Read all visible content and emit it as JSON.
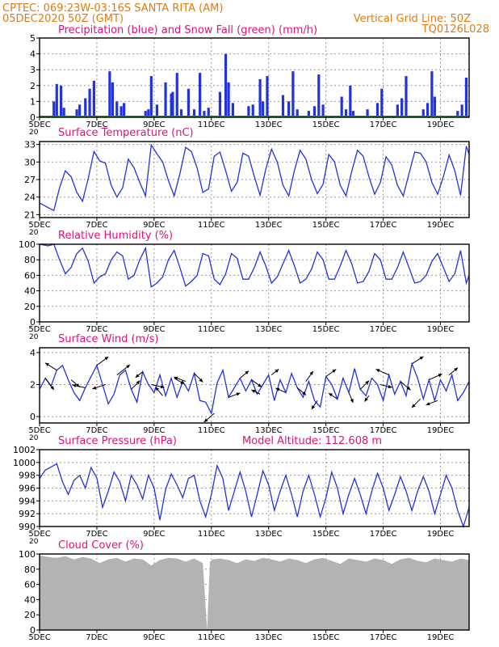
{
  "header": {
    "line1": "CPTEC:   069:23W-03:16S   SANTA RITA (AM)",
    "line2": "05DEC2020 50Z (GMT)",
    "grid_label": "Vertical Grid Line: 50Z",
    "code": "TQ0126L028"
  },
  "colors": {
    "header": "#e07a10",
    "title": "#e0107a",
    "line": "#2233dd",
    "snow": "#10aa10",
    "cloud": "#b3b3b3",
    "grid": "#999999",
    "frame": "#000000"
  },
  "x_axis": {
    "tick_labels": [
      "5DEC",
      "7DEC",
      "9DEC",
      "11DEC",
      "13DEC",
      "15DEC",
      "17DEC",
      "19DEC"
    ],
    "tick_days": [
      5,
      7,
      9,
      11,
      13,
      15,
      17,
      19
    ],
    "day_range": [
      5,
      20
    ],
    "year_fragment": "20"
  },
  "chart_data": [
    {
      "id": "precip",
      "type": "bar",
      "title": "Precipitation (blue) and Snow Fall (green) (mm/h)",
      "ylim": [
        0,
        5
      ],
      "yticks": [
        0,
        1,
        2,
        3,
        4,
        5
      ],
      "grid": true,
      "series": [
        {
          "name": "blue",
          "x": [
            5.5,
            5.6,
            5.75,
            5.85,
            6.3,
            6.4,
            6.6,
            6.75,
            6.9,
            7.45,
            7.55,
            7.7,
            7.85,
            7.95,
            8.7,
            8.8,
            8.9,
            9.1,
            9.4,
            9.6,
            9.65,
            9.8,
            9.95,
            10.2,
            10.4,
            10.6,
            10.75,
            10.9,
            11.3,
            11.5,
            11.6,
            11.75,
            12.3,
            12.45,
            12.7,
            12.8,
            12.95,
            13.5,
            13.7,
            13.85,
            14.0,
            14.4,
            14.6,
            14.75,
            14.9,
            15.55,
            15.7,
            15.85,
            15.95,
            16.45,
            16.8,
            16.95,
            17.5,
            17.65,
            17.8,
            18.4,
            18.55,
            18.7,
            18.8,
            19.6,
            19.75,
            19.9
          ],
          "values": [
            1.0,
            2.1,
            2.0,
            0.6,
            0.5,
            0.8,
            1.2,
            1.8,
            2.3,
            2.9,
            2.2,
            1.0,
            0.7,
            0.9,
            0.4,
            0.5,
            2.6,
            0.8,
            2.2,
            1.5,
            1.6,
            2.8,
            0.5,
            1.8,
            0.5,
            2.8,
            0.4,
            0.6,
            1.6,
            4.0,
            2.2,
            0.9,
            0.7,
            0.8,
            2.4,
            1.0,
            2.6,
            1.4,
            1.0,
            2.9,
            0.5,
            0.4,
            0.7,
            2.7,
            0.8,
            1.3,
            0.5,
            2.0,
            0.4,
            0.5,
            0.9,
            1.8,
            0.8,
            1.2,
            2.6,
            0.5,
            0.9,
            2.9,
            1.3,
            0.4,
            0.8,
            2.5
          ]
        },
        {
          "name": "green",
          "x": [
            5.0,
            20.0
          ],
          "values": [
            0,
            0
          ]
        }
      ]
    },
    {
      "id": "temp",
      "type": "line",
      "title": "Surface Temperature (nC)",
      "ylim": [
        20.5,
        33.5
      ],
      "yticks": [
        21,
        24,
        27,
        30,
        33
      ],
      "grid": true,
      "x": [
        5.0,
        5.3,
        5.5,
        5.7,
        5.9,
        6.1,
        6.3,
        6.5,
        6.7,
        6.9,
        7.1,
        7.3,
        7.5,
        7.7,
        7.9,
        8.1,
        8.3,
        8.5,
        8.7,
        8.9,
        9.1,
        9.3,
        9.5,
        9.7,
        9.9,
        10.1,
        10.3,
        10.5,
        10.7,
        10.9,
        11.1,
        11.3,
        11.5,
        11.7,
        11.9,
        12.1,
        12.3,
        12.5,
        12.7,
        12.9,
        13.1,
        13.3,
        13.5,
        13.7,
        13.9,
        14.1,
        14.3,
        14.5,
        14.7,
        14.9,
        15.1,
        15.3,
        15.5,
        15.7,
        15.9,
        16.1,
        16.3,
        16.5,
        16.7,
        16.9,
        17.1,
        17.3,
        17.5,
        17.7,
        17.9,
        18.1,
        18.3,
        18.5,
        18.7,
        18.9,
        19.1,
        19.3,
        19.5,
        19.7,
        19.9,
        20.0
      ],
      "values": [
        23.0,
        22.2,
        21.7,
        25.6,
        28.5,
        27.5,
        24.8,
        23.3,
        27.2,
        31.8,
        30.2,
        29.8,
        26.0,
        24.0,
        25.6,
        30.5,
        29.0,
        26.5,
        24.2,
        32.9,
        31.4,
        30.0,
        26.8,
        24.2,
        28.0,
        32.5,
        31.8,
        29.0,
        24.8,
        25.4,
        31.0,
        31.7,
        28.5,
        25.0,
        26.5,
        31.5,
        31.0,
        27.5,
        24.3,
        28.8,
        32.2,
        30.0,
        26.0,
        24.2,
        28.6,
        32.0,
        30.5,
        27.0,
        24.6,
        26.2,
        31.3,
        30.0,
        26.0,
        24.2,
        28.4,
        32.0,
        31.0,
        27.5,
        24.5,
        26.5,
        30.9,
        29.5,
        26.0,
        24.2,
        28.0,
        31.7,
        31.5,
        30.0,
        26.5,
        24.5,
        27.5,
        31.2,
        28.5,
        24.3,
        32.7,
        31.3
      ]
    },
    {
      "id": "rh",
      "type": "line",
      "title": "Relative Humidity (%)",
      "ylim": [
        0,
        100
      ],
      "yticks": [
        0,
        20,
        40,
        60,
        80,
        100
      ],
      "grid": true,
      "x": [
        5.0,
        5.3,
        5.5,
        5.7,
        5.9,
        6.1,
        6.3,
        6.5,
        6.7,
        6.9,
        7.1,
        7.3,
        7.5,
        7.7,
        7.9,
        8.1,
        8.3,
        8.5,
        8.7,
        8.9,
        9.1,
        9.3,
        9.5,
        9.7,
        9.9,
        10.1,
        10.3,
        10.5,
        10.7,
        10.9,
        11.1,
        11.3,
        11.5,
        11.7,
        11.9,
        12.1,
        12.3,
        12.5,
        12.7,
        12.9,
        13.1,
        13.3,
        13.5,
        13.7,
        13.9,
        14.1,
        14.3,
        14.5,
        14.7,
        14.9,
        15.1,
        15.3,
        15.5,
        15.7,
        15.9,
        16.1,
        16.3,
        16.5,
        16.7,
        16.9,
        17.1,
        17.3,
        17.5,
        17.7,
        17.9,
        18.1,
        18.3,
        18.5,
        18.7,
        18.9,
        19.1,
        19.3,
        19.5,
        19.7,
        19.9,
        20.0
      ],
      "values": [
        100,
        98,
        100,
        80,
        62,
        70,
        88,
        95,
        78,
        50,
        58,
        62,
        80,
        90,
        85,
        55,
        60,
        80,
        95,
        45,
        50,
        58,
        80,
        92,
        70,
        46,
        52,
        60,
        88,
        85,
        55,
        48,
        62,
        88,
        82,
        55,
        55,
        70,
        90,
        72,
        50,
        58,
        75,
        92,
        72,
        50,
        55,
        68,
        90,
        80,
        55,
        55,
        72,
        92,
        75,
        50,
        52,
        65,
        88,
        80,
        55,
        55,
        70,
        90,
        70,
        50,
        52,
        60,
        78,
        88,
        70,
        52,
        62,
        92,
        50,
        60
      ]
    },
    {
      "id": "wind",
      "type": "line",
      "title": "Surface Wind (m/s)",
      "ylim": [
        -0.4,
        4.3
      ],
      "yticks": [
        0,
        2,
        4
      ],
      "grid": true,
      "x": [
        5.0,
        5.2,
        5.4,
        5.6,
        5.8,
        6.0,
        6.2,
        6.4,
        6.6,
        6.8,
        7.0,
        7.2,
        7.4,
        7.6,
        7.8,
        8.0,
        8.2,
        8.4,
        8.6,
        8.8,
        9.0,
        9.2,
        9.4,
        9.6,
        9.8,
        10.0,
        10.2,
        10.4,
        10.6,
        10.8,
        11.0,
        11.2,
        11.4,
        11.6,
        11.8,
        12.0,
        12.2,
        12.4,
        12.6,
        12.8,
        13.0,
        13.2,
        13.4,
        13.6,
        13.8,
        14.0,
        14.2,
        14.4,
        14.6,
        14.8,
        15.0,
        15.2,
        15.4,
        15.6,
        15.8,
        16.0,
        16.2,
        16.4,
        16.6,
        16.8,
        17.0,
        17.2,
        17.4,
        17.6,
        17.8,
        18.0,
        18.2,
        18.4,
        18.6,
        18.8,
        19.0,
        19.2,
        19.4,
        19.6,
        19.8,
        20.0
      ],
      "values": [
        1.7,
        2.4,
        1.9,
        2.9,
        3.2,
        2.3,
        1.5,
        1.0,
        1.8,
        2.5,
        3.2,
        2.0,
        0.8,
        1.4,
        2.6,
        2.9,
        1.7,
        0.9,
        2.8,
        2.0,
        1.5,
        2.6,
        1.3,
        2.4,
        1.2,
        2.2,
        1.6,
        2.7,
        1.0,
        0.9,
        0.2,
        2.1,
        2.9,
        1.2,
        1.8,
        2.4,
        1.6,
        2.3,
        1.4,
        2.0,
        2.6,
        1.0,
        2.3,
        1.5,
        2.7,
        1.8,
        1.2,
        2.2,
        1.0,
        0.6,
        2.5,
        2.0,
        1.1,
        2.4,
        1.5,
        3.0,
        1.7,
        1.3,
        2.4,
        2.0,
        1.0,
        2.6,
        1.4,
        2.2,
        1.3,
        3.3,
        2.4,
        1.1,
        2.3,
        1.0,
        2.3,
        1.6,
        2.6,
        1.0,
        1.5,
        2.2
      ],
      "arrows": {
        "x": [
          5.2,
          5.6,
          6.1,
          6.6,
          7.0,
          7.3,
          7.7,
          8.2,
          8.6,
          8.9,
          9.3,
          9.7,
          10.1,
          10.4,
          11.1,
          11.6,
          12.0,
          12.4,
          12.7,
          13.1,
          13.6,
          14.0,
          14.3,
          14.7,
          15.0,
          15.4,
          15.8,
          16.2,
          16.5,
          16.9,
          17.2,
          17.6,
          18.0,
          18.3,
          18.6,
          18.9,
          19.3
        ],
        "u": [
          0.6,
          -0.8,
          0.6,
          -0.9,
          0.8,
          -0.9,
          0.9,
          0.6,
          -0.5,
          0.9,
          -0.5,
          0.7,
          -0.8,
          0.6,
          -0.7,
          0.8,
          0.6,
          0.7,
          -0.6,
          0.5,
          -0.7,
          0.6,
          0.5,
          -0.4,
          0.7,
          -0.6,
          0.3,
          0.6,
          -0.3,
          0.8,
          -0.9,
          0.7,
          0.8,
          -0.6,
          0.9,
          -0.8,
          0.6
        ],
        "v": [
          -0.8,
          0.5,
          -0.5,
          0.2,
          0.6,
          -0.3,
          0.7,
          0.6,
          -0.4,
          -0.2,
          0.6,
          -0.4,
          0.3,
          -0.6,
          -0.6,
          0.3,
          0.5,
          -0.5,
          0.3,
          0.4,
          0.3,
          -0.5,
          0.7,
          -0.6,
          0.5,
          0.4,
          -0.7,
          0.6,
          -0.4,
          -0.2,
          0.4,
          -0.6,
          0.5,
          -0.6,
          0.4,
          -0.3,
          0.5
        ]
      }
    },
    {
      "id": "pressure",
      "type": "line",
      "title": "Surface Pressure (hPa)",
      "subtitle": "Model Altitude: 112.608 m",
      "ylim": [
        990,
        1002
      ],
      "yticks": [
        990,
        992,
        994,
        996,
        998,
        1000,
        1002
      ],
      "grid": true,
      "x": [
        5.0,
        5.2,
        5.4,
        5.6,
        5.8,
        6.0,
        6.2,
        6.4,
        6.6,
        6.8,
        7.0,
        7.2,
        7.4,
        7.6,
        7.8,
        8.0,
        8.2,
        8.4,
        8.6,
        8.8,
        9.0,
        9.2,
        9.4,
        9.6,
        9.8,
        10.0,
        10.2,
        10.4,
        10.6,
        10.8,
        11.0,
        11.2,
        11.4,
        11.6,
        11.8,
        12.0,
        12.2,
        12.4,
        12.6,
        12.8,
        13.0,
        13.2,
        13.4,
        13.6,
        13.8,
        14.0,
        14.2,
        14.4,
        14.6,
        14.8,
        15.0,
        15.2,
        15.4,
        15.6,
        15.8,
        16.0,
        16.2,
        16.4,
        16.6,
        16.8,
        17.0,
        17.2,
        17.4,
        17.6,
        17.8,
        18.0,
        18.2,
        18.4,
        18.6,
        18.8,
        19.0,
        19.2,
        19.4,
        19.6,
        19.8,
        20.0
      ],
      "values": [
        997.5,
        998.8,
        999.3,
        999.8,
        997.0,
        995.0,
        997.2,
        998.0,
        996.0,
        999.2,
        997.6,
        993.0,
        995.5,
        998.5,
        997.0,
        994.0,
        998.0,
        996.5,
        994.3,
        998.0,
        996.0,
        991.0,
        995.8,
        998.2,
        996.5,
        994.5,
        997.5,
        998.0,
        994.0,
        991.5,
        995.0,
        999.5,
        997.5,
        992.5,
        995.5,
        998.5,
        995.5,
        991.5,
        995.0,
        998.7,
        996.5,
        992.5,
        995.5,
        998.0,
        995.0,
        991.5,
        995.5,
        998.0,
        995.0,
        991.5,
        994.5,
        998.5,
        996.0,
        992.0,
        995.0,
        997.5,
        995.0,
        992.0,
        995.5,
        998.3,
        996.0,
        992.5,
        995.0,
        997.8,
        995.5,
        992.5,
        995.5,
        997.8,
        995.5,
        992.0,
        995.0,
        998.0,
        996.0,
        992.5,
        990.0,
        993.0
      ]
    },
    {
      "id": "cloud",
      "type": "area",
      "title": "Cloud Cover (%)",
      "ylim": [
        0,
        100
      ],
      "yticks": [
        0,
        20,
        40,
        60,
        80,
        100
      ],
      "grid": true,
      "x": [
        5.0,
        5.3,
        5.6,
        5.9,
        6.2,
        6.5,
        6.8,
        7.1,
        7.4,
        7.7,
        8.0,
        8.3,
        8.6,
        8.9,
        9.2,
        9.5,
        9.8,
        10.1,
        10.4,
        10.7,
        10.85,
        10.95,
        11.05,
        11.3,
        11.6,
        11.9,
        12.2,
        12.5,
        12.8,
        13.1,
        13.4,
        13.7,
        14.0,
        14.3,
        14.6,
        14.9,
        15.2,
        15.5,
        15.8,
        16.1,
        16.4,
        16.7,
        17.0,
        17.3,
        17.6,
        17.9,
        18.2,
        18.5,
        18.8,
        19.1,
        19.4,
        19.7,
        20.0
      ],
      "values": [
        98,
        96,
        95,
        97,
        93,
        96,
        94,
        88,
        93,
        95,
        90,
        94,
        93,
        85,
        92,
        95,
        94,
        90,
        94,
        88,
        0,
        90,
        93,
        94,
        92,
        88,
        93,
        91,
        95,
        93,
        90,
        94,
        92,
        88,
        93,
        95,
        91,
        87,
        94,
        92,
        90,
        94,
        92,
        87,
        93,
        95,
        91,
        89,
        94,
        92,
        90,
        94,
        92
      ]
    }
  ]
}
